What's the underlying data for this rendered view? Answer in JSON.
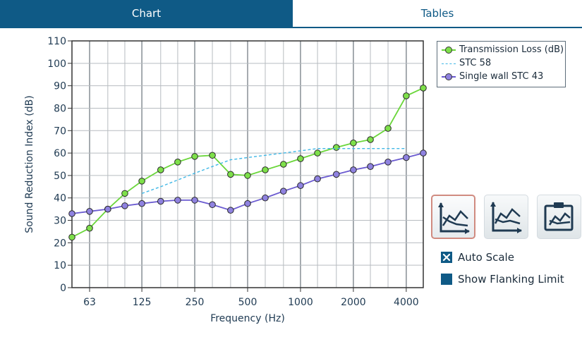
{
  "tabs": [
    {
      "label": "Chart",
      "active": true
    },
    {
      "label": "Tables",
      "active": false
    }
  ],
  "chart_data": {
    "type": "line",
    "title": "",
    "xlabel": "Frequency (Hz)",
    "ylabel": "Sound Reduction Index (dB)",
    "x_scale": "log",
    "xlim": [
      50,
      5000
    ],
    "ylim": [
      0,
      110
    ],
    "yticks": [
      0,
      10,
      20,
      30,
      40,
      50,
      60,
      70,
      80,
      90,
      100,
      110
    ],
    "xtick_values": [
      63,
      125,
      250,
      500,
      1000,
      2000,
      4000
    ],
    "xtick_labels": [
      "63",
      "125",
      "250",
      "500",
      "1000",
      "2000",
      "4000"
    ],
    "x": [
      50,
      63,
      80,
      100,
      125,
      160,
      200,
      250,
      315,
      400,
      500,
      630,
      800,
      1000,
      1250,
      1600,
      2000,
      2500,
      3150,
      4000,
      5000
    ],
    "grid": true,
    "legend_position": "top-right-outside",
    "series": [
      {
        "name": "Transmission Loss (dB)",
        "style": "line-marker",
        "color": "#6ad63a",
        "marker_color": "#7ee04a",
        "x": [
          50,
          63,
          80,
          100,
          125,
          160,
          200,
          250,
          315,
          400,
          500,
          630,
          800,
          1000,
          1250,
          1600,
          2000,
          2500,
          3150,
          4000,
          5000
        ],
        "values": [
          22.5,
          26.5,
          35,
          42,
          47.5,
          52.5,
          56,
          58.5,
          59,
          50.5,
          50,
          52.5,
          55,
          57.5,
          60,
          62.5,
          64.5,
          66,
          71,
          85.5,
          89
        ]
      },
      {
        "name": "STC 58",
        "style": "dashed",
        "color": "#41b8e6",
        "x": [
          125,
          160,
          200,
          250,
          315,
          400,
          500,
          630,
          800,
          1000,
          1250,
          1600,
          2000,
          2500,
          3150,
          4000
        ],
        "values": [
          42,
          45,
          48,
          51,
          54,
          57,
          58,
          59,
          60,
          61,
          62,
          62,
          62,
          62,
          62,
          62
        ]
      },
      {
        "name": "Single wall STC 43",
        "style": "line-marker",
        "color": "#6a5ad0",
        "marker_color": "#8f82e0",
        "x": [
          50,
          63,
          80,
          100,
          125,
          160,
          200,
          250,
          315,
          400,
          500,
          630,
          800,
          1000,
          1250,
          1600,
          2000,
          2500,
          3150,
          4000,
          5000
        ],
        "values": [
          33,
          34,
          35,
          36.5,
          37.5,
          38.5,
          39,
          39,
          37,
          34.5,
          37.5,
          40,
          43,
          45.5,
          48.5,
          50.5,
          52.5,
          54,
          56,
          58,
          60
        ]
      }
    ]
  },
  "icons": [
    "line-chart-icon",
    "chart-compare-icon",
    "chart-export-icon"
  ],
  "options": {
    "auto_scale": {
      "label": "Auto Scale",
      "checked": true
    },
    "show_flanking": {
      "label": "Show Flanking Limit",
      "checked": false
    }
  }
}
